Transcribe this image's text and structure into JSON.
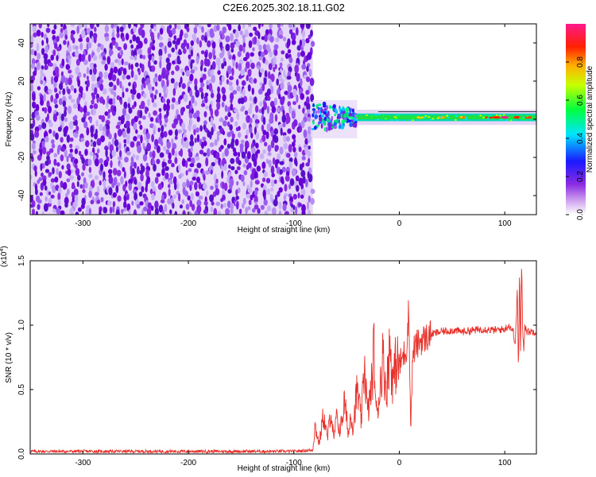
{
  "figure": {
    "title": "C2E6.2025.302.18.11.G02"
  },
  "chart_data": [
    {
      "type": "heatmap",
      "title": "C2E6.2025.302.18.11.G02",
      "xlabel": "Height of straight line (km)",
      "ylabel": "Frequency (Hz)",
      "xlim": [
        -350,
        130
      ],
      "ylim": [
        -50,
        50
      ],
      "x_ticks": [
        -300,
        -200,
        -100,
        0,
        100
      ],
      "x_tick_labels": [
        "-300",
        "-200",
        "-100",
        "0",
        "100"
      ],
      "y_ticks": [
        -40,
        -20,
        0,
        20,
        40
      ],
      "y_tick_labels": [
        "-40",
        "-20",
        "0",
        "20",
        "40"
      ],
      "colorbar": {
        "label": "Normalized spectral amplitude",
        "range": [
          0,
          1
        ],
        "ticks": [
          0.0,
          0.2,
          0.4,
          0.6,
          0.8
        ],
        "tick_labels": [
          "0.0",
          "0.2",
          "0.4",
          "0.6",
          "0.8"
        ],
        "colormap": "rainbow (white-violet-blue-cyan-green-yellow-orange-red-magenta)"
      },
      "regions": [
        {
          "x_range": [
            -350,
            -82
          ],
          "freq_range": [
            -50,
            50
          ],
          "amplitude": "low noise, ~0.05-0.2 (violet)"
        },
        {
          "x_range": [
            -82,
            -40
          ],
          "freq_range": [
            -10,
            10
          ],
          "amplitude": "signal onset, spread ~0.2-0.5"
        },
        {
          "x_range": [
            -40,
            130
          ],
          "freq_center": 1,
          "freq_width": 4,
          "amplitude": "narrow carrier line, ~0.5-1.0 (red near 90 km)"
        }
      ],
      "grid": false,
      "legend": "colorbar right"
    },
    {
      "type": "line",
      "xlabel": "Height of straight line (km)",
      "ylabel": "SNR (10 * v/v)",
      "y_multiplier_label": "(x10",
      "y_multiplier_exp": "4",
      "xlim": [
        -350,
        130
      ],
      "ylim": [
        0,
        1.5
      ],
      "x_ticks": [
        -300,
        -200,
        -100,
        0,
        100
      ],
      "x_tick_labels": [
        "-300",
        "-200",
        "-100",
        "0",
        "100"
      ],
      "y_ticks": [
        0,
        0.5,
        1.0,
        1.5
      ],
      "y_tick_labels": [
        "0.0",
        "0.5",
        "1.0",
        "1.5"
      ],
      "series": [
        {
          "color": "#e8302a",
          "x": [
            -350,
            -300,
            -250,
            -200,
            -150,
            -100,
            -82,
            -80,
            -76,
            -72,
            -68,
            -65,
            -62,
            -60,
            -56,
            -52,
            -48,
            -46,
            -44,
            -40,
            -36,
            -33,
            -30,
            -26,
            -24,
            -22,
            -19,
            -16,
            -12,
            -9,
            -6,
            -3,
            0,
            3,
            7,
            9,
            10,
            11,
            13,
            17,
            20,
            25,
            30,
            40,
            50,
            60,
            70,
            80,
            90,
            100,
            104,
            108,
            110,
            112,
            113,
            114,
            115,
            116,
            117,
            118,
            119,
            121,
            125,
            130
          ],
          "y": [
            0.02,
            0.02,
            0.02,
            0.02,
            0.02,
            0.02,
            0.03,
            0.22,
            0.08,
            0.3,
            0.12,
            0.35,
            0.1,
            0.28,
            0.18,
            0.4,
            0.15,
            0.33,
            0.2,
            0.5,
            0.25,
            0.72,
            0.3,
            0.55,
            0.82,
            0.3,
            0.45,
            0.75,
            0.5,
            0.85,
            0.55,
            0.72,
            0.68,
            0.75,
            0.82,
            1.15,
            0.55,
            0.25,
            0.8,
            0.85,
            0.88,
            0.9,
            0.93,
            0.95,
            0.96,
            0.95,
            0.96,
            0.97,
            0.96,
            0.97,
            1.0,
            0.95,
            0.85,
            1.3,
            0.6,
            1.45,
            0.75,
            1.5,
            0.95,
            0.82,
            1.0,
            0.95,
            0.95,
            0.95
          ]
        }
      ],
      "grid": false,
      "legend": "none"
    }
  ]
}
